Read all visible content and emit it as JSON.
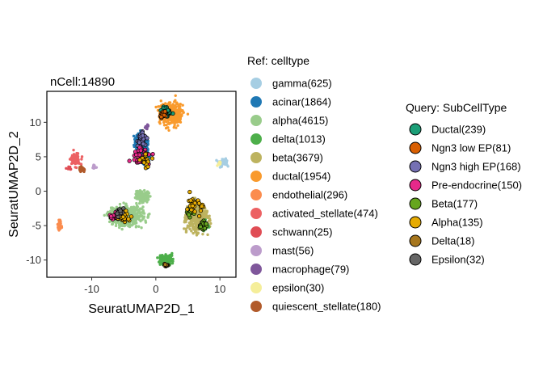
{
  "chart_data": {
    "type": "scatter",
    "title": "nCell:14890",
    "xlabel": "SeuratUMAP2D_1",
    "ylabel": "SeuratUMAP2D_2",
    "xlim": [
      -17,
      12.5
    ],
    "ylim": [
      -12.5,
      14.5
    ],
    "xticks": [
      -10,
      0,
      10
    ],
    "yticks": [
      -10,
      -5,
      0,
      5,
      10
    ],
    "xtick_labels": [
      "-10",
      "0",
      "10"
    ],
    "ytick_labels": [
      "-10",
      "-5",
      "0",
      "5",
      "10"
    ],
    "grid": false,
    "ref_legend": {
      "title": "Ref: celltype",
      "placement": "right",
      "entries": [
        {
          "label": "gamma(625)",
          "color": "#A6CEE3"
        },
        {
          "label": "acinar(1864)",
          "color": "#1F78B4"
        },
        {
          "label": "alpha(4615)",
          "color": "#99CC8B"
        },
        {
          "label": "delta(1013)",
          "color": "#4DAF4A"
        },
        {
          "label": "beta(3679)",
          "color": "#BDB35F"
        },
        {
          "label": "ductal(1954)",
          "color": "#F99A2C"
        },
        {
          "label": "endothelial(296)",
          "color": "#FB8C4E"
        },
        {
          "label": "activated_stellate(474)",
          "color": "#EC6163"
        },
        {
          "label": "schwann(25)",
          "color": "#E04D55"
        },
        {
          "label": "mast(56)",
          "color": "#BC9CCB"
        },
        {
          "label": "macrophage(79)",
          "color": "#7F579B"
        },
        {
          "label": "epsilon(30)",
          "color": "#F5EE9A"
        },
        {
          "label": "quiescent_stellate(180)",
          "color": "#B15A2A"
        }
      ]
    },
    "query_legend": {
      "title": "Query: SubCellType",
      "placement": "right",
      "entries": [
        {
          "label": "Ductal(239)",
          "color": "#1B9E77"
        },
        {
          "label": "Ngn3 low EP(81)",
          "color": "#D95F02"
        },
        {
          "label": "Ngn3 high EP(168)",
          "color": "#7570B3"
        },
        {
          "label": "Pre-endocrine(150)",
          "color": "#E7298A"
        },
        {
          "label": "Beta(177)",
          "color": "#66A61E"
        },
        {
          "label": "Alpha(135)",
          "color": "#E6AB02"
        },
        {
          "label": "Delta(18)",
          "color": "#A6761D"
        },
        {
          "label": "Epsilon(32)",
          "color": "#666666"
        }
      ]
    },
    "ref_clusters": [
      {
        "celltype": "ductal(1954)",
        "cx": 2.5,
        "cy": 11.2,
        "sx": 1.6,
        "sy": 1.4,
        "n": 360
      },
      {
        "celltype": "acinar(1864)",
        "cx": -2.3,
        "cy": 7.0,
        "sx": 0.9,
        "sy": 1.2,
        "n": 260
      },
      {
        "celltype": "acinar(1864)",
        "cx": -1.5,
        "cy": 4.4,
        "sx": 0.5,
        "sy": 0.9,
        "n": 80
      },
      {
        "celltype": "alpha(4615)",
        "cx": -4.5,
        "cy": -3.6,
        "sx": 2.4,
        "sy": 1.3,
        "n": 500
      },
      {
        "celltype": "alpha(4615)",
        "cx": -2.0,
        "cy": -0.8,
        "sx": 1.0,
        "sy": 0.8,
        "n": 120
      },
      {
        "celltype": "beta(3679)",
        "cx": 6.5,
        "cy": -3.8,
        "sx": 1.5,
        "sy": 1.9,
        "n": 420
      },
      {
        "celltype": "delta(1013)",
        "cx": 1.6,
        "cy": -10.0,
        "sx": 0.9,
        "sy": 0.7,
        "n": 160
      },
      {
        "celltype": "delta(1013)",
        "cx": 7.8,
        "cy": -5.0,
        "sx": 0.6,
        "sy": 0.6,
        "n": 40
      },
      {
        "celltype": "gamma(625)",
        "cx": 10.5,
        "cy": 4.2,
        "sx": 0.6,
        "sy": 0.5,
        "n": 70
      },
      {
        "celltype": "endothelial(296)",
        "cx": -15.0,
        "cy": -4.8,
        "sx": 0.3,
        "sy": 0.6,
        "n": 40
      },
      {
        "celltype": "activated_stellate(474)",
        "cx": -12.6,
        "cy": 4.6,
        "sx": 0.7,
        "sy": 0.8,
        "n": 90
      },
      {
        "celltype": "schwann(25)",
        "cx": -13.5,
        "cy": 3.4,
        "sx": 0.3,
        "sy": 0.3,
        "n": 10
      },
      {
        "celltype": "quiescent_stellate(180)",
        "cx": -11.5,
        "cy": 3.2,
        "sx": 0.5,
        "sy": 0.3,
        "n": 40
      },
      {
        "celltype": "mast(56)",
        "cx": -9.6,
        "cy": 3.5,
        "sx": 0.3,
        "sy": 0.3,
        "n": 14
      },
      {
        "celltype": "macrophage(79)",
        "cx": -1.4,
        "cy": 9.4,
        "sx": 0.3,
        "sy": 0.3,
        "n": 14
      },
      {
        "celltype": "epsilon(30)",
        "cx": 9.9,
        "cy": 4.0,
        "sx": 0.3,
        "sy": 0.3,
        "n": 10
      }
    ],
    "query_clusters": [
      {
        "subcelltype": "Ductal(239)",
        "cx": 1.5,
        "cy": 11.6,
        "sx": 0.7,
        "sy": 0.6,
        "n": 60
      },
      {
        "subcelltype": "Ngn3 low EP(81)",
        "cx": 1.2,
        "cy": 11.2,
        "sx": 0.5,
        "sy": 0.5,
        "n": 18
      },
      {
        "subcelltype": "Ngn3 high EP(168)",
        "cx": -2.2,
        "cy": 7.6,
        "sx": 0.6,
        "sy": 0.9,
        "n": 40
      },
      {
        "subcelltype": "Pre-endocrine(150)",
        "cx": -2.5,
        "cy": 5.2,
        "sx": 1.4,
        "sy": 1.6,
        "n": 34
      },
      {
        "subcelltype": "Pre-endocrine(150)",
        "cx": -6.4,
        "cy": -3.5,
        "sx": 0.7,
        "sy": 0.6,
        "n": 22
      },
      {
        "subcelltype": "Beta(177)",
        "cx": 7.4,
        "cy": -5.0,
        "sx": 0.6,
        "sy": 0.6,
        "n": 40
      },
      {
        "subcelltype": "Beta(177)",
        "cx": 5.5,
        "cy": -3.0,
        "sx": 0.8,
        "sy": 0.8,
        "n": 20
      },
      {
        "subcelltype": "Alpha(135)",
        "cx": -5.2,
        "cy": -3.6,
        "sx": 1.0,
        "sy": 0.6,
        "n": 34
      },
      {
        "subcelltype": "Alpha(135)",
        "cx": 6.0,
        "cy": -2.0,
        "sx": 1.2,
        "sy": 1.4,
        "n": 28
      },
      {
        "subcelltype": "Alpha(135)",
        "cx": -1.6,
        "cy": 4.4,
        "sx": 0.6,
        "sy": 1.2,
        "n": 16
      },
      {
        "subcelltype": "Delta(18)",
        "cx": 1.6,
        "cy": -10.8,
        "sx": 0.3,
        "sy": 0.2,
        "n": 12
      },
      {
        "subcelltype": "Epsilon(32)",
        "cx": -5.6,
        "cy": -3.0,
        "sx": 0.6,
        "sy": 0.5,
        "n": 14
      }
    ]
  }
}
